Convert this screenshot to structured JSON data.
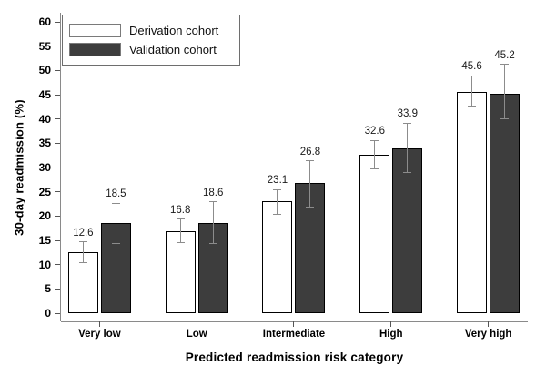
{
  "figure": {
    "background": "#ffffff",
    "accent_dark_bar": "#3d3d3d",
    "error_bar_color": "#8c8c8c",
    "axis_line_color": "#8a8a8a"
  },
  "chart_data": {
    "type": "bar",
    "title": "",
    "xlabel": "Predicted readmission risk category",
    "ylabel": "30-day readmission (%)",
    "ylim": [
      0,
      60
    ],
    "ytick_step": 5,
    "ytick_values": [
      0,
      5,
      10,
      15,
      20,
      25,
      30,
      35,
      40,
      45,
      50,
      55,
      60
    ],
    "grid": false,
    "legend_position": "top-left",
    "categories": [
      "Very low",
      "Low",
      "Intermediate",
      "High",
      "Very high"
    ],
    "series": [
      {
        "name": "Derivation cohort",
        "fill": "#ffffff",
        "outline": "#000000",
        "values": [
          12.6,
          16.8,
          23.1,
          32.6,
          45.6
        ],
        "ci_low": [
          10.5,
          14.5,
          20.4,
          29.7,
          42.6
        ],
        "ci_high": [
          14.7,
          19.4,
          25.5,
          35.6,
          48.9
        ]
      },
      {
        "name": "Validation cohort",
        "fill": "#3d3d3d",
        "outline": "#000000",
        "values": [
          18.5,
          18.6,
          26.8,
          33.9,
          45.2
        ],
        "ci_low": [
          14.4,
          14.3,
          21.9,
          28.9,
          40.0
        ],
        "ci_high": [
          22.6,
          22.9,
          31.4,
          39.1,
          51.2
        ]
      }
    ],
    "value_label_decimals": 1
  },
  "legend": {
    "items": [
      {
        "label": "Derivation cohort",
        "fill": "#ffffff"
      },
      {
        "label": "Validation cohort",
        "fill": "#3d3d3d"
      }
    ]
  }
}
